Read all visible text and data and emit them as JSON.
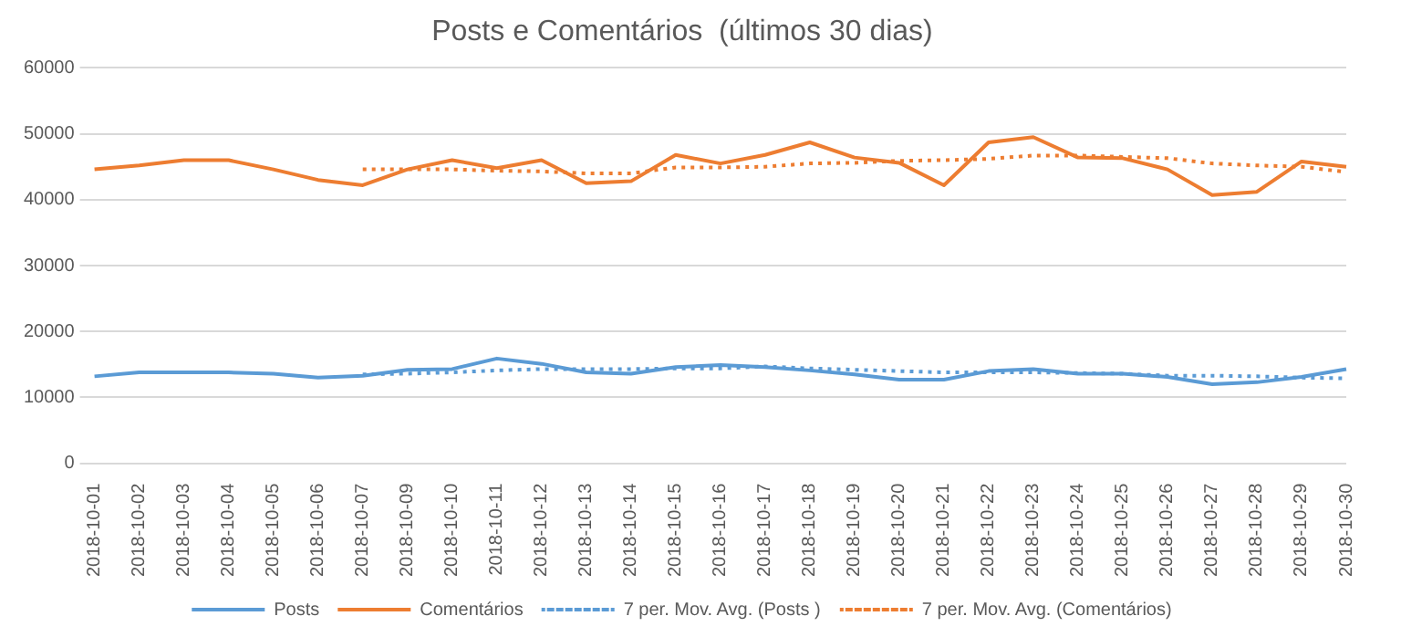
{
  "chart_data": {
    "type": "line",
    "title": "Posts e Comentários  (últimos 30 dias)",
    "categories": [
      "2018-10-01",
      "2018-10-02",
      "2018-10-03",
      "2018-10-04",
      "2018-10-05",
      "2018-10-06",
      "2018-10-07",
      "2018-10-09",
      "2018-10-10",
      "2018-10-11",
      "2018-10-12",
      "2018-10-13",
      "2018-10-14",
      "2018-10-15",
      "2018-10-16",
      "2018-10-17",
      "2018-10-18",
      "2018-10-19",
      "2018-10-20",
      "2018-10-21",
      "2018-10-22",
      "2018-10-23",
      "2018-10-24",
      "2018-10-25",
      "2018-10-26",
      "2018-10-27",
      "2018-10-28",
      "2018-10-29",
      "2018-10-30"
    ],
    "series": [
      {
        "name": "Posts",
        "color": "#5b9bd5",
        "line_style": "solid",
        "values": [
          13200,
          13800,
          13800,
          13800,
          13600,
          13000,
          13300,
          14200,
          14300,
          15900,
          15100,
          13800,
          13600,
          14600,
          14900,
          14600,
          14100,
          13500,
          12700,
          12700,
          14000,
          14300,
          13600,
          13600,
          13100,
          12000,
          12300,
          13100,
          14300
        ]
      },
      {
        "name": "Comentários",
        "color": "#ed7d31",
        "line_style": "solid",
        "values": [
          44600,
          45200,
          46000,
          46000,
          44600,
          43000,
          42200,
          44600,
          46000,
          44800,
          46000,
          42500,
          42800,
          46800,
          45500,
          46800,
          48700,
          46400,
          45600,
          42200,
          48700,
          49500,
          46400,
          46300,
          44600,
          40700,
          41200,
          45800,
          45000
        ]
      },
      {
        "name": "7 per. Mov. Avg. (Posts )",
        "color": "#5b9bd5",
        "line_style": "dotted",
        "values": [
          null,
          null,
          null,
          null,
          null,
          null,
          13500,
          13600,
          13800,
          14100,
          14300,
          14300,
          14300,
          14400,
          14400,
          14700,
          14400,
          14200,
          14000,
          13800,
          13800,
          13800,
          13700,
          13600,
          13300,
          13300,
          13200,
          13000,
          12900
        ]
      },
      {
        "name": "7 per. Mov. Avg. (Comentários)",
        "color": "#ed7d31",
        "line_style": "dotted",
        "values": [
          null,
          null,
          null,
          null,
          null,
          null,
          44600,
          44600,
          44600,
          44400,
          44300,
          44000,
          44000,
          44900,
          44900,
          45000,
          45500,
          45600,
          45900,
          46000,
          46200,
          46700,
          46700,
          46500,
          46300,
          45500,
          45200,
          45000,
          44200
        ]
      }
    ],
    "ylim": [
      0,
      60000
    ],
    "yticks": [
      0,
      10000,
      20000,
      30000,
      40000,
      50000,
      60000
    ],
    "grid": "y",
    "legend": "bottom",
    "marker": "none"
  }
}
